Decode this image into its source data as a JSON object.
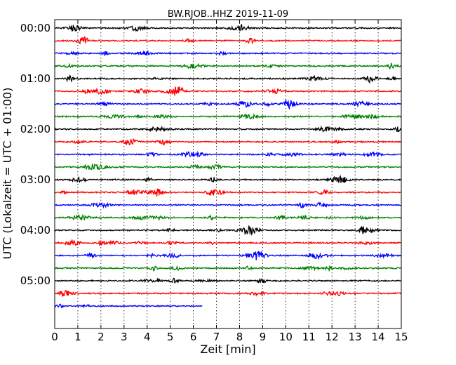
{
  "chart_data": {
    "type": "line",
    "title": "BW.RJOB..HHZ 2019-11-09",
    "xlabel": "Zeit  [min]",
    "ylabel": "UTC (Lokalzeit = UTC + 01:00)",
    "xlim": [
      0,
      15
    ],
    "xticks": [
      "0",
      "1",
      "2",
      "3",
      "4",
      "5",
      "6",
      "7",
      "8",
      "9",
      "10",
      "11",
      "12",
      "13",
      "14",
      "15"
    ],
    "ytick_labels": [
      "00:00",
      "01:00",
      "02:00",
      "03:00",
      "04:00",
      "05:00"
    ],
    "grid_x": true,
    "trace_colors": [
      "#000000",
      "#ff0000",
      "#0000ff",
      "#008000"
    ],
    "trace_count": 23,
    "last_trace_end_min": 6.4
  }
}
